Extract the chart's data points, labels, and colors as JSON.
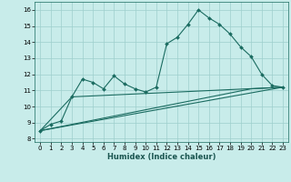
{
  "xlabel": "Humidex (Indice chaleur)",
  "background_color": "#c8ecea",
  "grid_color": "#9ecfcc",
  "line_color": "#1a6b60",
  "xlim": [
    -0.5,
    23.5
  ],
  "ylim": [
    7.8,
    16.5
  ],
  "yticks": [
    8,
    9,
    10,
    11,
    12,
    13,
    14,
    15,
    16
  ],
  "xticks": [
    0,
    1,
    2,
    3,
    4,
    5,
    6,
    7,
    8,
    9,
    10,
    11,
    12,
    13,
    14,
    15,
    16,
    17,
    18,
    19,
    20,
    21,
    22,
    23
  ],
  "line1_x": [
    0,
    1,
    2,
    3,
    4,
    5,
    6,
    7,
    8,
    9,
    10,
    11,
    12,
    13,
    14,
    15,
    16,
    17,
    18,
    19,
    20,
    21,
    22,
    23
  ],
  "line1_y": [
    8.5,
    8.9,
    9.1,
    10.6,
    11.7,
    11.5,
    11.1,
    11.9,
    11.4,
    11.1,
    10.9,
    11.2,
    13.9,
    14.3,
    15.1,
    16.0,
    15.5,
    15.1,
    14.5,
    13.7,
    13.1,
    12.0,
    11.3,
    11.2
  ],
  "line2_x": [
    0,
    3,
    23
  ],
  "line2_y": [
    8.5,
    10.6,
    11.2
  ],
  "line3_x": [
    0,
    23
  ],
  "line3_y": [
    8.5,
    11.2
  ],
  "line4_x": [
    0,
    20,
    23
  ],
  "line4_y": [
    8.5,
    11.1,
    11.2
  ]
}
